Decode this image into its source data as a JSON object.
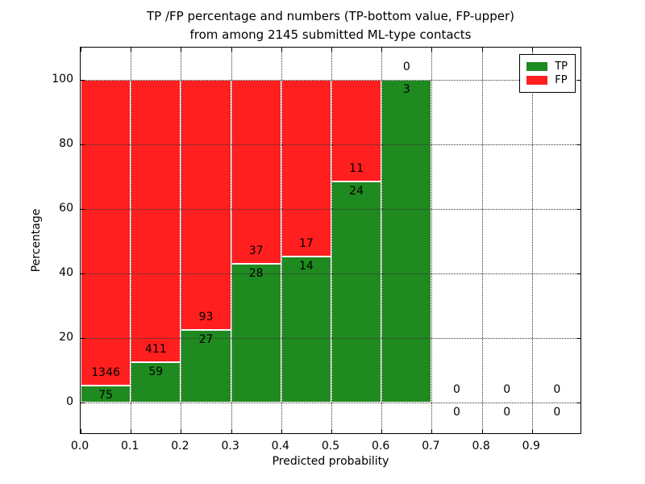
{
  "title": {
    "line1": "TP /FP percentage and numbers (TP-bottom value, FP-upper)",
    "line2": "from among 2145 submitted ML-type contacts"
  },
  "chart_data": {
    "type": "bar",
    "subtype": "stacked-percentage",
    "title": "TP /FP percentage and numbers (TP-bottom value, FP-upper)\nfrom among 2145 submitted ML-type contacts",
    "xlabel": "Predicted probability",
    "ylabel": "Percentage",
    "total_contacts": 2145,
    "bin_width": 0.1,
    "bin_starts": [
      0.0,
      0.1,
      0.2,
      0.3,
      0.4,
      0.5,
      0.6,
      0.7,
      0.8,
      0.9
    ],
    "series": [
      {
        "name": "TP",
        "color": "#1f8a1f",
        "counts": [
          75,
          59,
          27,
          28,
          14,
          24,
          3,
          0,
          0,
          0
        ]
      },
      {
        "name": "FP",
        "color": "#ff1f1f",
        "counts": [
          1346,
          411,
          93,
          37,
          17,
          11,
          0,
          0,
          0,
          0
        ]
      }
    ],
    "tp_percent_of_bin": [
      5.3,
      12.6,
      22.5,
      43.1,
      45.2,
      68.6,
      100.0,
      0,
      0,
      0
    ],
    "xlim": [
      0.0,
      1.0
    ],
    "ylim": [
      -10,
      110
    ],
    "x_ticks": [
      "0.0",
      "0.1",
      "0.2",
      "0.3",
      "0.4",
      "0.5",
      "0.6",
      "0.7",
      "0.8",
      "0.9"
    ],
    "y_ticks": [
      "0",
      "20",
      "40",
      "60",
      "80",
      "100"
    ],
    "grid": "dotted, drawn above bars",
    "legend": {
      "position": "upper right",
      "entries": [
        {
          "label": "TP",
          "color": "#1f8a1f"
        },
        {
          "label": "FP",
          "color": "#ff1f1f"
        }
      ]
    }
  }
}
